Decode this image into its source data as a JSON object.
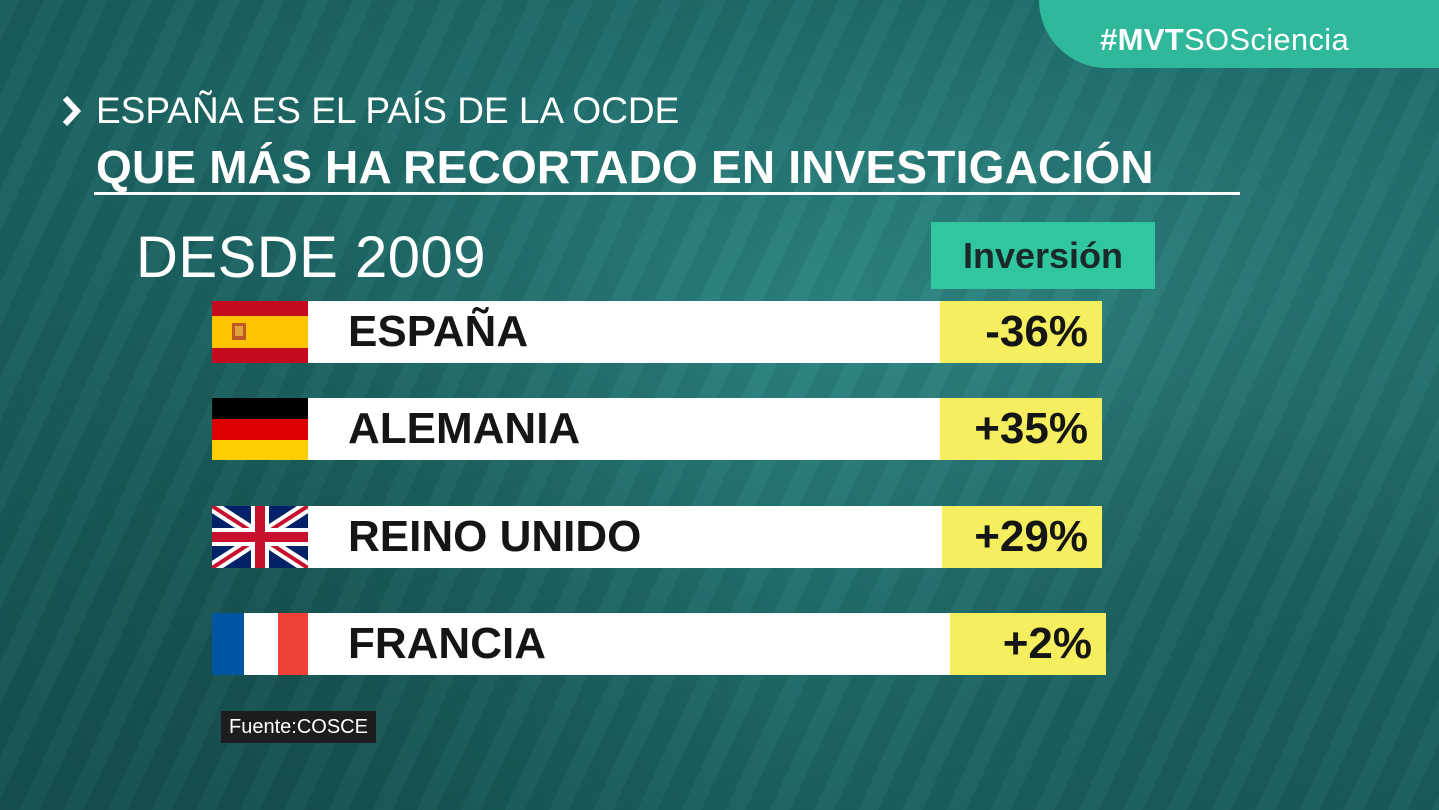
{
  "hashtag": {
    "bold": "#MVT",
    "rest": "SOSciencia"
  },
  "kicker": "ESPAÑA ES EL PAÍS DE LA OCDE",
  "headline": "QUE MÁS HA RECORTADO EN INVESTIGACIÓN",
  "period": "DESDE 2009",
  "column_header": "Inversión",
  "rows": [
    {
      "country": "ESPAÑA",
      "value": "-36%",
      "flag": "spain-flag-icon"
    },
    {
      "country": "ALEMANIA",
      "value": "+35%",
      "flag": "germany-flag-icon"
    },
    {
      "country": "REINO UNIDO",
      "value": "+29%",
      "flag": "uk-flag-icon"
    },
    {
      "country": "FRANCIA",
      "value": "+2%",
      "flag": "france-flag-icon"
    }
  ],
  "source": "Fuente:COSCE",
  "colors": {
    "background": "#1f6e6c",
    "accent_green": "#2fc6a0",
    "value_yellow": "#f5ee5e",
    "hashtag_tab": "#2fb89a"
  }
}
